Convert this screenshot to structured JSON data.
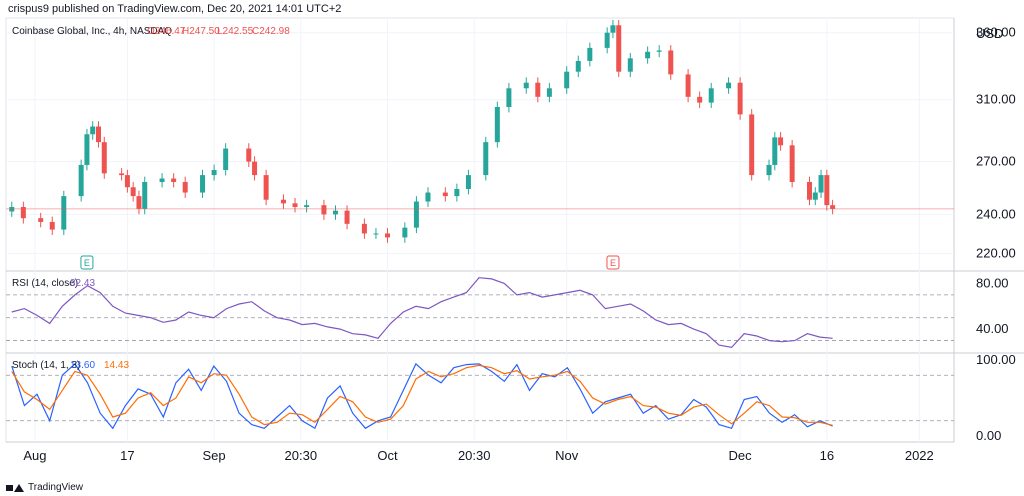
{
  "header": {
    "publisher_text": "crispus9 published on TradingView.com, Dec 20, 2021 14:01 UTC+2"
  },
  "footer": {
    "brand": "TradingView"
  },
  "colors": {
    "up": "#26a69a",
    "down": "#ef5350",
    "rsi": "#7e57c2",
    "stoch_k": "#2962ff",
    "stoch_d": "#ff6d00",
    "grid": "#f0f3fa",
    "dashed": "#9598a1",
    "priceline": "#ef5350"
  },
  "chart_data": [
    {
      "type": "candlestick",
      "title": "Coinbase Global, Inc., 4h, NASDAQ",
      "legend_values": {
        "open": "O246.47",
        "high": "H247.50",
        "low": "L242.55",
        "close": "C242.98"
      },
      "currency": "USD",
      "y_ticks": [
        "360.00",
        "310.00",
        "270.00",
        "240.00",
        "220.00"
      ],
      "ylim": [
        212,
        372
      ],
      "log_scale": true,
      "x_ticks": [
        "Aug",
        "17",
        "Sep",
        "20:30",
        "Oct",
        "20:30",
        "Nov",
        "Dec",
        "16",
        "2022"
      ],
      "events": [
        {
          "label": "E",
          "date": "2021-08-10",
          "color": "#26a69a"
        },
        {
          "label": "E",
          "date": "2021-11-09",
          "color": "#ef5350"
        }
      ],
      "series_close": [
        {
          "date": "2021-07-28",
          "value": 244
        },
        {
          "date": "2021-07-30",
          "value": 238
        },
        {
          "date": "2021-08-02",
          "value": 236
        },
        {
          "date": "2021-08-04",
          "value": 232
        },
        {
          "date": "2021-08-06",
          "value": 250
        },
        {
          "date": "2021-08-09",
          "value": 268
        },
        {
          "date": "2021-08-10",
          "value": 287
        },
        {
          "date": "2021-08-11",
          "value": 292
        },
        {
          "date": "2021-08-12",
          "value": 282
        },
        {
          "date": "2021-08-13",
          "value": 263
        },
        {
          "date": "2021-08-16",
          "value": 262
        },
        {
          "date": "2021-08-17",
          "value": 255
        },
        {
          "date": "2021-08-18",
          "value": 250
        },
        {
          "date": "2021-08-19",
          "value": 243
        },
        {
          "date": "2021-08-20",
          "value": 258
        },
        {
          "date": "2021-08-23",
          "value": 260
        },
        {
          "date": "2021-08-25",
          "value": 258
        },
        {
          "date": "2021-08-27",
          "value": 252
        },
        {
          "date": "2021-08-30",
          "value": 262
        },
        {
          "date": "2021-09-01",
          "value": 265
        },
        {
          "date": "2021-09-03",
          "value": 278
        },
        {
          "date": "2021-09-07",
          "value": 270
        },
        {
          "date": "2021-09-08",
          "value": 262
        },
        {
          "date": "2021-09-10",
          "value": 248
        },
        {
          "date": "2021-09-13",
          "value": 246
        },
        {
          "date": "2021-09-15",
          "value": 244
        },
        {
          "date": "2021-09-17",
          "value": 245
        },
        {
          "date": "2021-09-20",
          "value": 240
        },
        {
          "date": "2021-09-22",
          "value": 242
        },
        {
          "date": "2021-09-24",
          "value": 235
        },
        {
          "date": "2021-09-27",
          "value": 230
        },
        {
          "date": "2021-09-29",
          "value": 230
        },
        {
          "date": "2021-10-01",
          "value": 228
        },
        {
          "date": "2021-10-04",
          "value": 233
        },
        {
          "date": "2021-10-06",
          "value": 247
        },
        {
          "date": "2021-10-08",
          "value": 252
        },
        {
          "date": "2021-10-11",
          "value": 250
        },
        {
          "date": "2021-10-13",
          "value": 254
        },
        {
          "date": "2021-10-15",
          "value": 262
        },
        {
          "date": "2021-10-18",
          "value": 282
        },
        {
          "date": "2021-10-20",
          "value": 305
        },
        {
          "date": "2021-10-22",
          "value": 318
        },
        {
          "date": "2021-10-25",
          "value": 322
        },
        {
          "date": "2021-10-27",
          "value": 312
        },
        {
          "date": "2021-10-29",
          "value": 318
        },
        {
          "date": "2021-11-01",
          "value": 330
        },
        {
          "date": "2021-11-03",
          "value": 338
        },
        {
          "date": "2021-11-05",
          "value": 348
        },
        {
          "date": "2021-11-08",
          "value": 360
        },
        {
          "date": "2021-11-09",
          "value": 366
        },
        {
          "date": "2021-11-10",
          "value": 330
        },
        {
          "date": "2021-11-12",
          "value": 340
        },
        {
          "date": "2021-11-15",
          "value": 345
        },
        {
          "date": "2021-11-17",
          "value": 346
        },
        {
          "date": "2021-11-19",
          "value": 328
        },
        {
          "date": "2021-11-22",
          "value": 312
        },
        {
          "date": "2021-11-24",
          "value": 308
        },
        {
          "date": "2021-11-26",
          "value": 318
        },
        {
          "date": "2021-11-29",
          "value": 322
        },
        {
          "date": "2021-12-01",
          "value": 300
        },
        {
          "date": "2021-12-03",
          "value": 262
        },
        {
          "date": "2021-12-06",
          "value": 268
        },
        {
          "date": "2021-12-07",
          "value": 285
        },
        {
          "date": "2021-12-08",
          "value": 280
        },
        {
          "date": "2021-12-10",
          "value": 258
        },
        {
          "date": "2021-12-13",
          "value": 248
        },
        {
          "date": "2021-12-14",
          "value": 252
        },
        {
          "date": "2021-12-15",
          "value": 262
        },
        {
          "date": "2021-12-16",
          "value": 245
        },
        {
          "date": "2021-12-17",
          "value": 243
        }
      ],
      "last_price": 242.98
    },
    {
      "type": "line",
      "title": "RSI (14, close)",
      "legend_value": "32.43",
      "y_ticks": [
        "80.00",
        "40.00"
      ],
      "ylim": [
        20,
        90
      ],
      "levels": [
        70,
        50,
        30
      ],
      "values": [
        55,
        58,
        52,
        45,
        60,
        70,
        78,
        72,
        60,
        54,
        52,
        50,
        46,
        48,
        55,
        52,
        50,
        58,
        62,
        64,
        56,
        50,
        48,
        44,
        45,
        42,
        40,
        36,
        35,
        32,
        45,
        55,
        60,
        58,
        64,
        68,
        72,
        85,
        84,
        80,
        70,
        72,
        68,
        70,
        72,
        74,
        70,
        58,
        60,
        62,
        56,
        48,
        44,
        45,
        40,
        36,
        26,
        24,
        36,
        34,
        30,
        29,
        30,
        36,
        33,
        32
      ]
    },
    {
      "type": "line",
      "title": "Stoch (14, 1, 3)",
      "legend_k": "13.60",
      "legend_d": "14.43",
      "y_ticks": [
        "100.00",
        "0.00"
      ],
      "ylim": [
        -8,
        108
      ],
      "levels": [
        80,
        20
      ],
      "k_values": [
        92,
        40,
        55,
        20,
        80,
        95,
        70,
        30,
        10,
        40,
        62,
        55,
        25,
        70,
        88,
        60,
        92,
        72,
        30,
        15,
        10,
        25,
        40,
        20,
        10,
        50,
        66,
        30,
        10,
        20,
        25,
        60,
        95,
        80,
        70,
        90,
        94,
        95,
        85,
        72,
        94,
        60,
        82,
        78,
        90,
        62,
        30,
        45,
        50,
        55,
        30,
        40,
        22,
        28,
        48,
        38,
        15,
        10,
        48,
        52,
        30,
        18,
        28,
        12,
        20,
        13
      ],
      "d_values": [
        85,
        58,
        48,
        35,
        60,
        85,
        80,
        55,
        25,
        30,
        50,
        57,
        40,
        50,
        78,
        70,
        82,
        80,
        55,
        25,
        15,
        18,
        30,
        28,
        18,
        35,
        52,
        45,
        25,
        18,
        22,
        40,
        75,
        85,
        78,
        82,
        90,
        93,
        90,
        82,
        86,
        75,
        78,
        80,
        85,
        72,
        50,
        42,
        48,
        52,
        40,
        38,
        30,
        27,
        38,
        42,
        28,
        16,
        30,
        45,
        40,
        25,
        24,
        18,
        18,
        14
      ]
    }
  ]
}
